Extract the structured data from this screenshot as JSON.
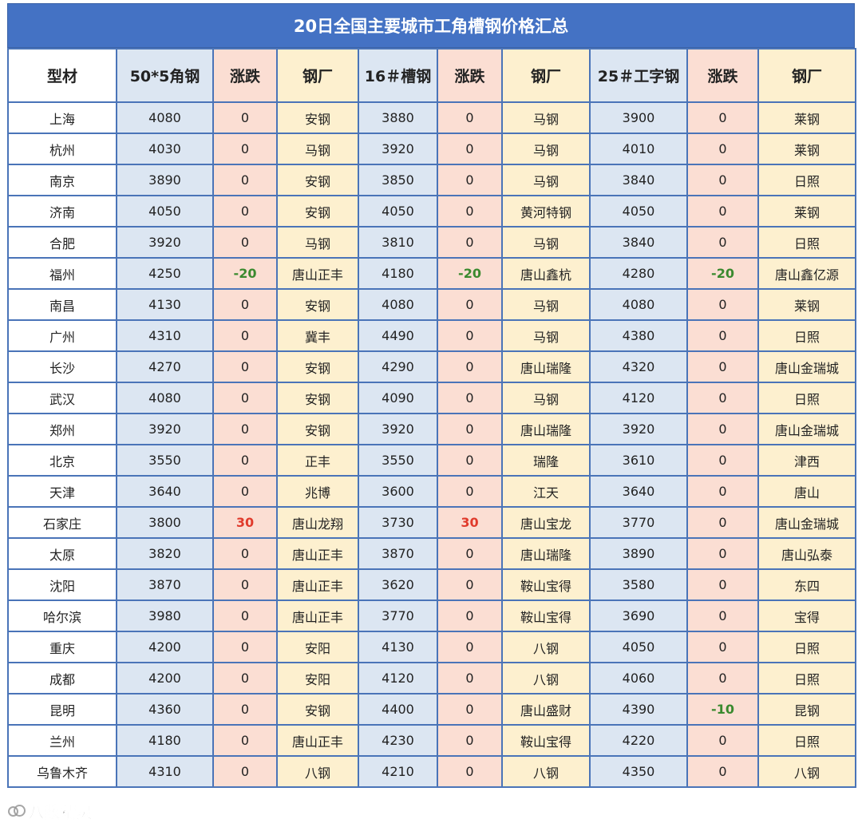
{
  "title": "20日全国主要城市工角槽钢价格汇总",
  "headers": [
    "型材",
    "50*5角钢",
    "涨跌",
    "钢厂",
    "16＃槽钢",
    "涨跌",
    "钢厂",
    "25＃工字钢",
    "涨跌",
    "钢厂"
  ],
  "rows": [
    {
      "city": "上海",
      "angle": "4080",
      "angle_chg": "0",
      "angle_mill": "安钢",
      "channel": "3880",
      "channel_chg": "0",
      "channel_mill": "马钢",
      "ibeam": "3900",
      "ibeam_chg": "0",
      "ibeam_mill": "莱钢"
    },
    {
      "city": "杭州",
      "angle": "4030",
      "angle_chg": "0",
      "angle_mill": "马钢",
      "channel": "3920",
      "channel_chg": "0",
      "channel_mill": "马钢",
      "ibeam": "4010",
      "ibeam_chg": "0",
      "ibeam_mill": "莱钢"
    },
    {
      "city": "南京",
      "angle": "3890",
      "angle_chg": "0",
      "angle_mill": "安钢",
      "channel": "3850",
      "channel_chg": "0",
      "channel_mill": "马钢",
      "ibeam": "3840",
      "ibeam_chg": "0",
      "ibeam_mill": "日照"
    },
    {
      "city": "济南",
      "angle": "4050",
      "angle_chg": "0",
      "angle_mill": "安钢",
      "channel": "4050",
      "channel_chg": "0",
      "channel_mill": "黄河特钢",
      "ibeam": "4050",
      "ibeam_chg": "0",
      "ibeam_mill": "莱钢"
    },
    {
      "city": "合肥",
      "angle": "3920",
      "angle_chg": "0",
      "angle_mill": "马钢",
      "channel": "3810",
      "channel_chg": "0",
      "channel_mill": "马钢",
      "ibeam": "3840",
      "ibeam_chg": "0",
      "ibeam_mill": "日照"
    },
    {
      "city": "福州",
      "angle": "4250",
      "angle_chg": "-20",
      "angle_mill": "唐山正丰",
      "channel": "4180",
      "channel_chg": "-20",
      "channel_mill": "唐山鑫杭",
      "ibeam": "4280",
      "ibeam_chg": "-20",
      "ibeam_mill": "唐山鑫亿源"
    },
    {
      "city": "南昌",
      "angle": "4130",
      "angle_chg": "0",
      "angle_mill": "安钢",
      "channel": "4080",
      "channel_chg": "0",
      "channel_mill": "马钢",
      "ibeam": "4080",
      "ibeam_chg": "0",
      "ibeam_mill": "莱钢"
    },
    {
      "city": "广州",
      "angle": "4310",
      "angle_chg": "0",
      "angle_mill": "冀丰",
      "channel": "4490",
      "channel_chg": "0",
      "channel_mill": "马钢",
      "ibeam": "4380",
      "ibeam_chg": "0",
      "ibeam_mill": "日照"
    },
    {
      "city": "长沙",
      "angle": "4270",
      "angle_chg": "0",
      "angle_mill": "安钢",
      "channel": "4290",
      "channel_chg": "0",
      "channel_mill": "唐山瑞隆",
      "ibeam": "4320",
      "ibeam_chg": "0",
      "ibeam_mill": "唐山金瑞城"
    },
    {
      "city": "武汉",
      "angle": "4080",
      "angle_chg": "0",
      "angle_mill": "安钢",
      "channel": "4090",
      "channel_chg": "0",
      "channel_mill": "马钢",
      "ibeam": "4120",
      "ibeam_chg": "0",
      "ibeam_mill": "日照"
    },
    {
      "city": "郑州",
      "angle": "3920",
      "angle_chg": "0",
      "angle_mill": "安钢",
      "channel": "3920",
      "channel_chg": "0",
      "channel_mill": "唐山瑞隆",
      "ibeam": "3920",
      "ibeam_chg": "0",
      "ibeam_mill": "唐山金瑞城"
    },
    {
      "city": "北京",
      "angle": "3550",
      "angle_chg": "0",
      "angle_mill": "正丰",
      "channel": "3550",
      "channel_chg": "0",
      "channel_mill": "瑞隆",
      "ibeam": "3610",
      "ibeam_chg": "0",
      "ibeam_mill": "津西"
    },
    {
      "city": "天津",
      "angle": "3640",
      "angle_chg": "0",
      "angle_mill": "兆博",
      "channel": "3600",
      "channel_chg": "0",
      "channel_mill": "江天",
      "ibeam": "3640",
      "ibeam_chg": "0",
      "ibeam_mill": "唐山"
    },
    {
      "city": "石家庄",
      "angle": "3800",
      "angle_chg": "30",
      "angle_mill": "唐山龙翔",
      "channel": "3730",
      "channel_chg": "30",
      "channel_mill": "唐山宝龙",
      "ibeam": "3770",
      "ibeam_chg": "0",
      "ibeam_mill": "唐山金瑞城"
    },
    {
      "city": "太原",
      "angle": "3820",
      "angle_chg": "0",
      "angle_mill": "唐山正丰",
      "channel": "3870",
      "channel_chg": "0",
      "channel_mill": "唐山瑞隆",
      "ibeam": "3890",
      "ibeam_chg": "0",
      "ibeam_mill": "唐山弘泰"
    },
    {
      "city": "沈阳",
      "angle": "3870",
      "angle_chg": "0",
      "angle_mill": "唐山正丰",
      "channel": "3620",
      "channel_chg": "0",
      "channel_mill": "鞍山宝得",
      "ibeam": "3580",
      "ibeam_chg": "0",
      "ibeam_mill": "东四"
    },
    {
      "city": "哈尔滨",
      "angle": "3980",
      "angle_chg": "0",
      "angle_mill": "唐山正丰",
      "channel": "3770",
      "channel_chg": "0",
      "channel_mill": "鞍山宝得",
      "ibeam": "3690",
      "ibeam_chg": "0",
      "ibeam_mill": "宝得"
    },
    {
      "city": "重庆",
      "angle": "4200",
      "angle_chg": "0",
      "angle_mill": "安阳",
      "channel": "4130",
      "channel_chg": "0",
      "channel_mill": "八钢",
      "ibeam": "4050",
      "ibeam_chg": "0",
      "ibeam_mill": "日照"
    },
    {
      "city": "成都",
      "angle": "4200",
      "angle_chg": "0",
      "angle_mill": "安阳",
      "channel": "4120",
      "channel_chg": "0",
      "channel_mill": "八钢",
      "ibeam": "4060",
      "ibeam_chg": "0",
      "ibeam_mill": "日照"
    },
    {
      "city": "昆明",
      "angle": "4360",
      "angle_chg": "0",
      "angle_mill": "安钢",
      "channel": "4400",
      "channel_chg": "0",
      "channel_mill": "唐山盛财",
      "ibeam": "4390",
      "ibeam_chg": "-10",
      "ibeam_mill": "昆钢"
    },
    {
      "city": "兰州",
      "angle": "4180",
      "angle_chg": "0",
      "angle_mill": "唐山正丰",
      "channel": "4230",
      "channel_chg": "0",
      "channel_mill": "鞍山宝得",
      "ibeam": "4220",
      "ibeam_chg": "0",
      "ibeam_mill": "日照"
    },
    {
      "city": "乌鲁木齐",
      "angle": "4310",
      "angle_chg": "0",
      "angle_mill": "八钢",
      "channel": "4210",
      "channel_chg": "0",
      "channel_mill": "八钢",
      "ibeam": "4350",
      "ibeam_chg": "0",
      "ibeam_mill": "八钢"
    }
  ],
  "watermark": "八数精灵",
  "colors": {
    "title_bg": "#4472c4",
    "blue_col": "#dce6f2",
    "pink_col": "#fbded3",
    "yellow_col": "#fdf0cf",
    "negative": "#3b8a2f",
    "positive": "#e03b2c",
    "border": "#4a74b8"
  }
}
